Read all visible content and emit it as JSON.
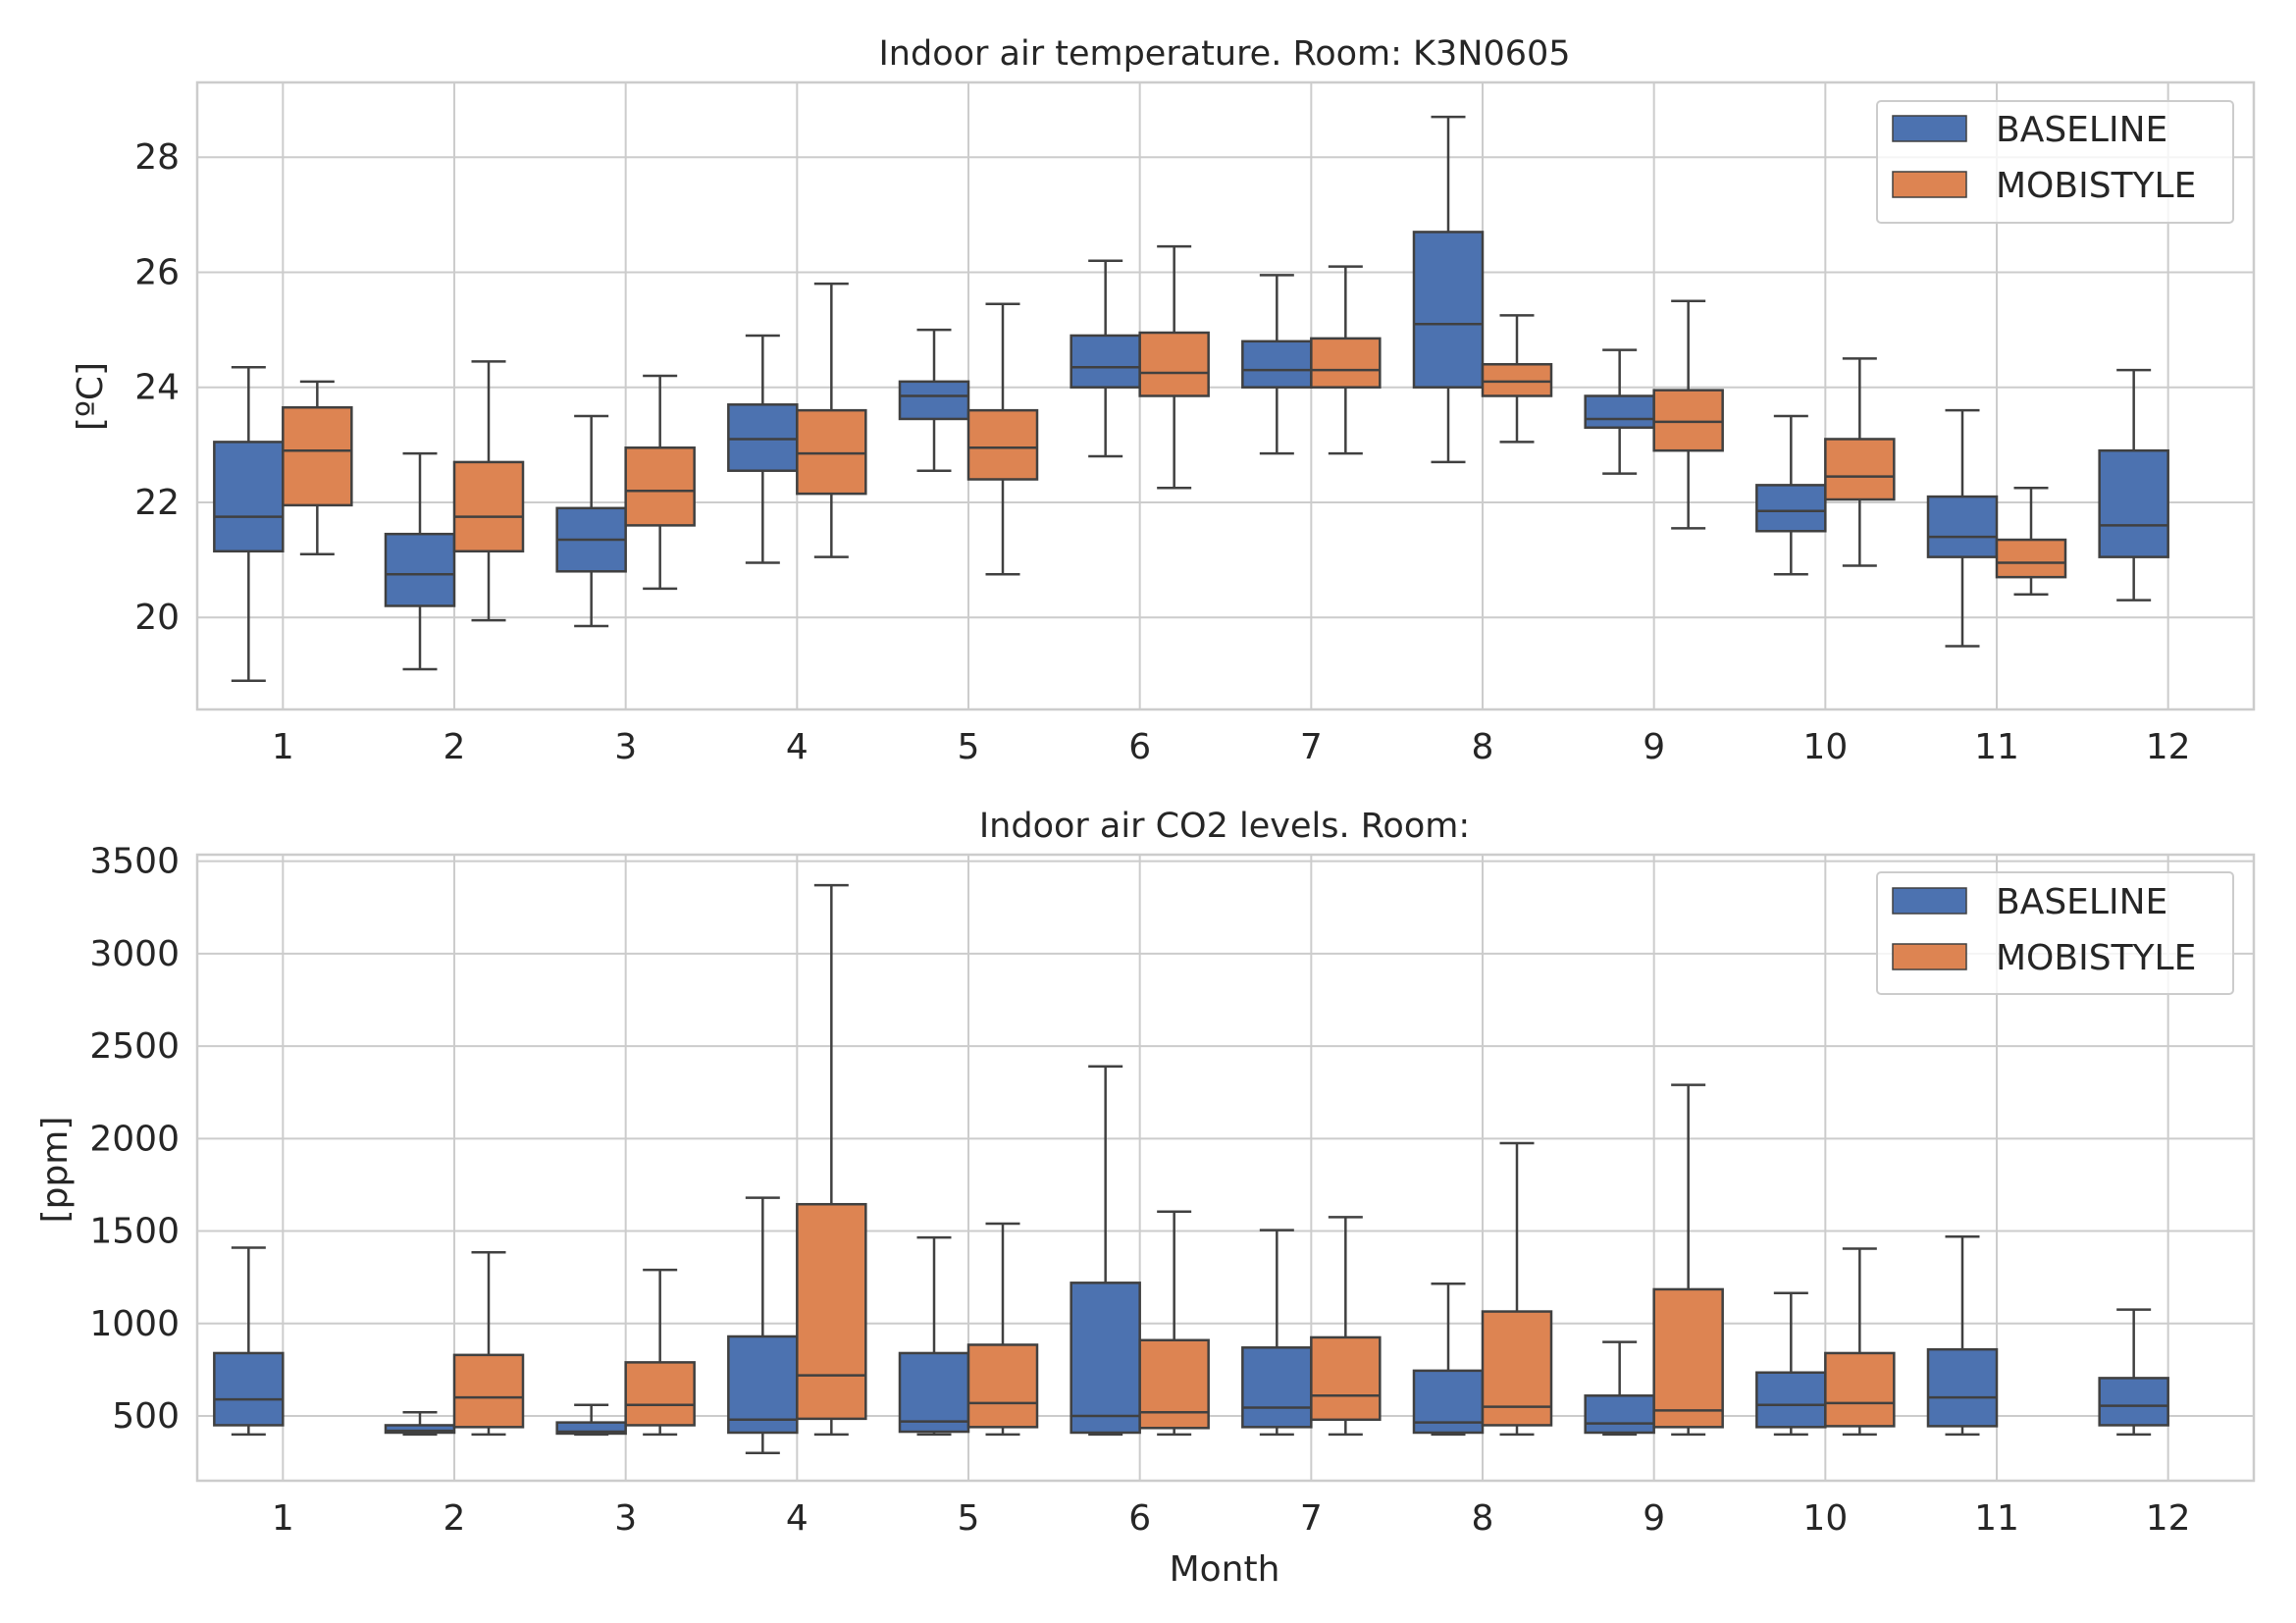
{
  "colors": {
    "baseline": "#4c72b0",
    "mobistyle": "#dd8452",
    "edge": "#404040",
    "grid": "#cccccc"
  },
  "chart_data": [
    {
      "type": "box",
      "title": "Indoor air temperature. Room: K3N0605",
      "xlabel": "",
      "ylabel": "[ºC]",
      "ylim": [
        18.4,
        29.3
      ],
      "yticks": [
        20,
        22,
        24,
        26,
        28
      ],
      "categories": [
        "1",
        "2",
        "3",
        "4",
        "5",
        "6",
        "7",
        "8",
        "9",
        "10",
        "11",
        "12"
      ],
      "legend": {
        "position": "top-right",
        "entries": [
          "BASELINE",
          "MOBISTYLE"
        ]
      },
      "series": [
        {
          "name": "BASELINE",
          "color_key": "baseline",
          "boxes": [
            {
              "whislo": 18.9,
              "q1": 21.15,
              "med": 21.75,
              "q3": 23.05,
              "whishi": 24.35
            },
            {
              "whislo": 19.1,
              "q1": 20.2,
              "med": 20.75,
              "q3": 21.45,
              "whishi": 22.85
            },
            {
              "whislo": 19.85,
              "q1": 20.8,
              "med": 21.35,
              "q3": 21.9,
              "whishi": 23.5
            },
            {
              "whislo": 20.95,
              "q1": 22.55,
              "med": 23.1,
              "q3": 23.7,
              "whishi": 24.9
            },
            {
              "whislo": 22.55,
              "q1": 23.45,
              "med": 23.85,
              "q3": 24.1,
              "whishi": 25.0
            },
            {
              "whislo": 22.8,
              "q1": 24.0,
              "med": 24.35,
              "q3": 24.9,
              "whishi": 26.2
            },
            {
              "whislo": 22.85,
              "q1": 24.0,
              "med": 24.3,
              "q3": 24.8,
              "whishi": 25.95
            },
            {
              "whislo": 22.7,
              "q1": 24.0,
              "med": 25.1,
              "q3": 26.7,
              "whishi": 28.7
            },
            {
              "whislo": 22.5,
              "q1": 23.3,
              "med": 23.45,
              "q3": 23.85,
              "whishi": 24.65
            },
            {
              "whislo": 20.75,
              "q1": 21.5,
              "med": 21.85,
              "q3": 22.3,
              "whishi": 23.5
            },
            {
              "whislo": 19.5,
              "q1": 21.05,
              "med": 21.4,
              "q3": 22.1,
              "whishi": 23.6
            },
            {
              "whislo": 20.3,
              "q1": 21.05,
              "med": 21.6,
              "q3": 22.9,
              "whishi": 24.3
            }
          ]
        },
        {
          "name": "MOBISTYLE",
          "color_key": "mobistyle",
          "boxes": [
            {
              "whislo": 21.1,
              "q1": 21.95,
              "med": 22.9,
              "q3": 23.65,
              "whishi": 24.1
            },
            {
              "whislo": 19.95,
              "q1": 21.15,
              "med": 21.75,
              "q3": 22.7,
              "whishi": 24.45
            },
            {
              "whislo": 20.5,
              "q1": 21.6,
              "med": 22.2,
              "q3": 22.95,
              "whishi": 24.2
            },
            {
              "whislo": 21.05,
              "q1": 22.15,
              "med": 22.85,
              "q3": 23.6,
              "whishi": 25.8
            },
            {
              "whislo": 20.75,
              "q1": 22.4,
              "med": 22.95,
              "q3": 23.6,
              "whishi": 25.45
            },
            {
              "whislo": 22.25,
              "q1": 23.85,
              "med": 24.25,
              "q3": 24.95,
              "whishi": 26.45
            },
            {
              "whislo": 22.85,
              "q1": 24.0,
              "med": 24.3,
              "q3": 24.85,
              "whishi": 26.1
            },
            {
              "whislo": 23.05,
              "q1": 23.85,
              "med": 24.1,
              "q3": 24.4,
              "whishi": 25.25
            },
            {
              "whislo": 21.55,
              "q1": 22.9,
              "med": 23.4,
              "q3": 23.95,
              "whishi": 25.5
            },
            {
              "whislo": 20.9,
              "q1": 22.05,
              "med": 22.45,
              "q3": 23.1,
              "whishi": 24.5
            },
            {
              "whislo": 20.4,
              "q1": 20.7,
              "med": 20.95,
              "q3": 21.35,
              "whishi": 22.25
            },
            null
          ]
        }
      ]
    },
    {
      "type": "box",
      "title": "Indoor air CO2 levels. Room:",
      "xlabel": "Month",
      "ylabel": "[ppm]",
      "ylim": [
        150,
        3535
      ],
      "yticks": [
        500,
        1000,
        1500,
        2000,
        2500,
        3000,
        3500
      ],
      "categories": [
        "1",
        "2",
        "3",
        "4",
        "5",
        "6",
        "7",
        "8",
        "9",
        "10",
        "11",
        "12"
      ],
      "legend": {
        "position": "top-right",
        "entries": [
          "BASELINE",
          "MOBISTYLE"
        ]
      },
      "series": [
        {
          "name": "BASELINE",
          "color_key": "baseline",
          "boxes": [
            {
              "whislo": 400,
              "q1": 450,
              "med": 590,
              "q3": 840,
              "whishi": 1410
            },
            {
              "whislo": 400,
              "q1": 410,
              "med": 420,
              "q3": 450,
              "whishi": 520
            },
            {
              "whislo": 400,
              "q1": 405,
              "med": 415,
              "q3": 465,
              "whishi": 560
            },
            {
              "whislo": 300,
              "q1": 410,
              "med": 480,
              "q3": 930,
              "whishi": 1680
            },
            {
              "whislo": 400,
              "q1": 415,
              "med": 470,
              "q3": 840,
              "whishi": 1465
            },
            {
              "whislo": 400,
              "q1": 410,
              "med": 500,
              "q3": 1220,
              "whishi": 2390
            },
            {
              "whislo": 400,
              "q1": 440,
              "med": 545,
              "q3": 870,
              "whishi": 1505
            },
            {
              "whislo": 400,
              "q1": 410,
              "med": 465,
              "q3": 745,
              "whishi": 1215
            },
            {
              "whislo": 400,
              "q1": 410,
              "med": 460,
              "q3": 610,
              "whishi": 900
            },
            {
              "whislo": 400,
              "q1": 440,
              "med": 560,
              "q3": 735,
              "whishi": 1165
            },
            {
              "whislo": 400,
              "q1": 445,
              "med": 600,
              "q3": 860,
              "whishi": 1470
            },
            {
              "whislo": 400,
              "q1": 450,
              "med": 555,
              "q3": 705,
              "whishi": 1075
            }
          ]
        },
        {
          "name": "MOBISTYLE",
          "color_key": "mobistyle",
          "boxes": [
            null,
            {
              "whislo": 400,
              "q1": 440,
              "med": 600,
              "q3": 830,
              "whishi": 1385
            },
            {
              "whislo": 400,
              "q1": 450,
              "med": 560,
              "q3": 790,
              "whishi": 1290
            },
            {
              "whislo": 400,
              "q1": 485,
              "med": 720,
              "q3": 1645,
              "whishi": 3370
            },
            {
              "whislo": 400,
              "q1": 440,
              "med": 570,
              "q3": 885,
              "whishi": 1540
            },
            {
              "whislo": 400,
              "q1": 435,
              "med": 520,
              "q3": 910,
              "whishi": 1605
            },
            {
              "whislo": 400,
              "q1": 480,
              "med": 610,
              "q3": 925,
              "whishi": 1575
            },
            {
              "whislo": 400,
              "q1": 450,
              "med": 550,
              "q3": 1065,
              "whishi": 1975
            },
            {
              "whislo": 400,
              "q1": 440,
              "med": 530,
              "q3": 1185,
              "whishi": 2290
            },
            {
              "whislo": 400,
              "q1": 445,
              "med": 570,
              "q3": 840,
              "whishi": 1405
            },
            null,
            null
          ]
        }
      ]
    }
  ]
}
